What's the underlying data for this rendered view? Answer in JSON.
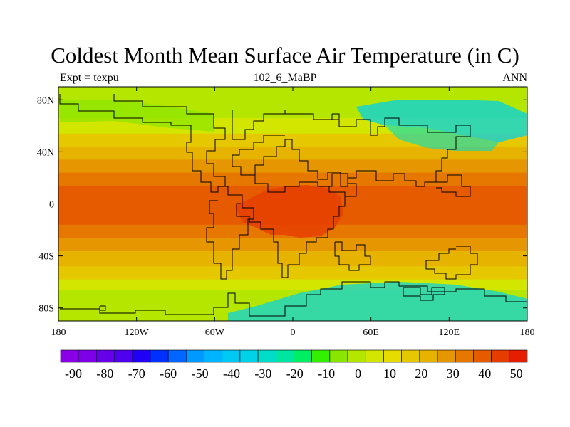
{
  "title": "Coldest Month Mean Surface Air Temperature (in C)",
  "subtitle_left": "Expt = texpu",
  "subtitle_center": "102_6_MaBP",
  "subtitle_right": "ANN",
  "map": {
    "lat_ticks": [
      {
        "label": "80N",
        "lat": 80
      },
      {
        "label": "40N",
        "lat": 40
      },
      {
        "label": "0",
        "lat": 0
      },
      {
        "label": "40S",
        "lat": -40
      },
      {
        "label": "80S",
        "lat": -80
      }
    ],
    "lon_ticks": [
      {
        "label": "180",
        "lon": -180
      },
      {
        "label": "120W",
        "lon": -120
      },
      {
        "label": "60W",
        "lon": -60
      },
      {
        "label": "0",
        "lon": 0
      },
      {
        "label": "60E",
        "lon": 60
      },
      {
        "label": "120E",
        "lon": 120
      },
      {
        "label": "180",
        "lon": 180
      }
    ],
    "zonal_temperature_bands": [
      {
        "lat_from": 90,
        "lat_to": 78,
        "value": -5
      },
      {
        "lat_from": 78,
        "lat_to": 66,
        "value": 0
      },
      {
        "lat_from": 66,
        "lat_to": 54,
        "value": 5
      },
      {
        "lat_from": 54,
        "lat_to": 44,
        "value": 15
      },
      {
        "lat_from": 44,
        "lat_to": 34,
        "value": 20
      },
      {
        "lat_from": 34,
        "lat_to": 24,
        "value": 25
      },
      {
        "lat_from": 24,
        "lat_to": 14,
        "value": 30
      },
      {
        "lat_from": 14,
        "lat_to": -16,
        "value": 35
      },
      {
        "lat_from": -16,
        "lat_to": -26,
        "value": 30
      },
      {
        "lat_from": -26,
        "lat_to": -36,
        "value": 25
      },
      {
        "lat_from": -36,
        "lat_to": -48,
        "value": 20
      },
      {
        "lat_from": -48,
        "lat_to": -58,
        "value": 15
      },
      {
        "lat_from": -58,
        "lat_to": -66,
        "value": 5
      },
      {
        "lat_from": -66,
        "lat_to": -74,
        "value": 0
      },
      {
        "lat_from": -74,
        "lat_to": -90,
        "value": -5
      }
    ]
  },
  "colorbar": {
    "colors": [
      "#8a00e6",
      "#7d00e9",
      "#6600ea",
      "#4f00ee",
      "#2200f5",
      "#0030ff",
      "#0066ff",
      "#0099ff",
      "#00b4ff",
      "#00c8f5",
      "#00d2e8",
      "#00dcc8",
      "#00e6a0",
      "#00ee64",
      "#33f000",
      "#8ae600",
      "#b4e600",
      "#d2e600",
      "#e6dc00",
      "#e6c800",
      "#e6b400",
      "#e69600",
      "#e67800",
      "#e65a00",
      "#e63c00",
      "#e61e00"
    ],
    "labels": [
      "-90",
      "-80",
      "-70",
      "-60",
      "-50",
      "-40",
      "-30",
      "-20",
      "-10",
      "0",
      "10",
      "20",
      "30",
      "40",
      "50"
    ]
  }
}
